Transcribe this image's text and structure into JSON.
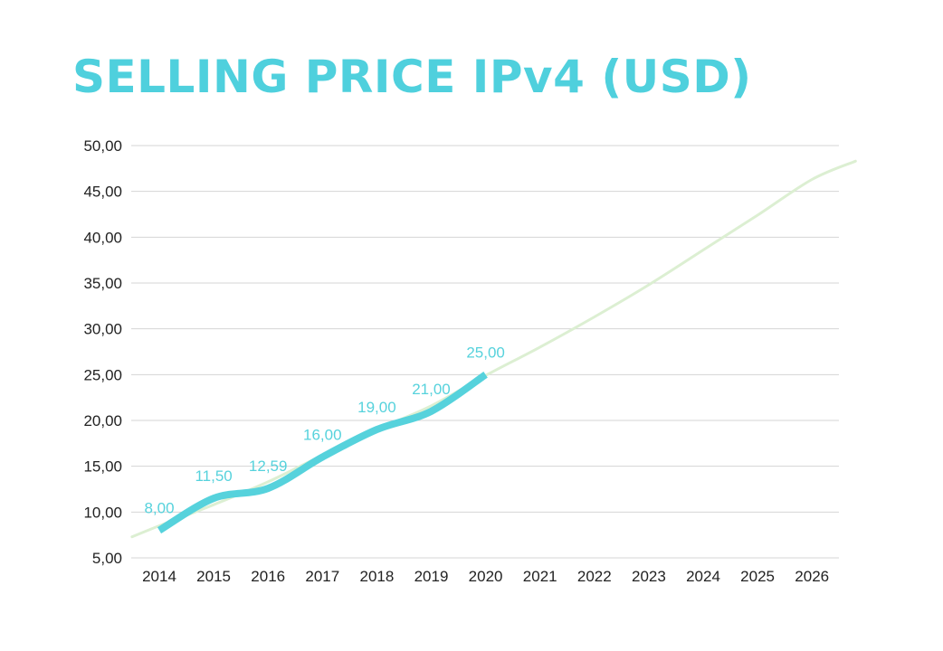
{
  "chart_data": {
    "type": "line",
    "title": "SELLING PRICE IPv4 (USD)",
    "xlabel": "",
    "ylabel": "",
    "categories": [
      "2014",
      "2015",
      "2016",
      "2017",
      "2018",
      "2019",
      "2020",
      "2021",
      "2022",
      "2023",
      "2024",
      "2025",
      "2026"
    ],
    "y_tick_labels": [
      "5,00",
      "10,00",
      "15,00",
      "20,00",
      "25,00",
      "30,00",
      "35,00",
      "40,00",
      "45,00",
      "50,00"
    ],
    "ylim": [
      5,
      50
    ],
    "grid": true,
    "legend": "none",
    "series": [
      {
        "role": "actual",
        "x": [
          "2014",
          "2015",
          "2016",
          "2017",
          "2018",
          "2019",
          "2020"
        ],
        "values": [
          8.0,
          11.5,
          12.59,
          16.0,
          19.0,
          21.0,
          25.0
        ],
        "data_labels": [
          "8,00",
          "11,50",
          "12,59",
          "16,00",
          "19,00",
          "21,00",
          "25,00"
        ],
        "color": "#56d2dc"
      },
      {
        "role": "trend",
        "x": [
          2013.5,
          2014,
          2015,
          2016,
          2017,
          2018,
          2019,
          2020,
          2021,
          2022,
          2023,
          2024,
          2025,
          2026,
          2026.8
        ],
        "values": [
          7.3,
          8.5,
          10.8,
          13.3,
          16.2,
          19.0,
          21.6,
          24.9,
          28.0,
          31.3,
          34.8,
          38.6,
          42.4,
          46.3,
          48.3
        ],
        "color": "#dcefd2"
      }
    ],
    "colors": {
      "title": "#4fd0dd",
      "grid": "#d4d4d4",
      "axis_text": "#222222"
    }
  }
}
